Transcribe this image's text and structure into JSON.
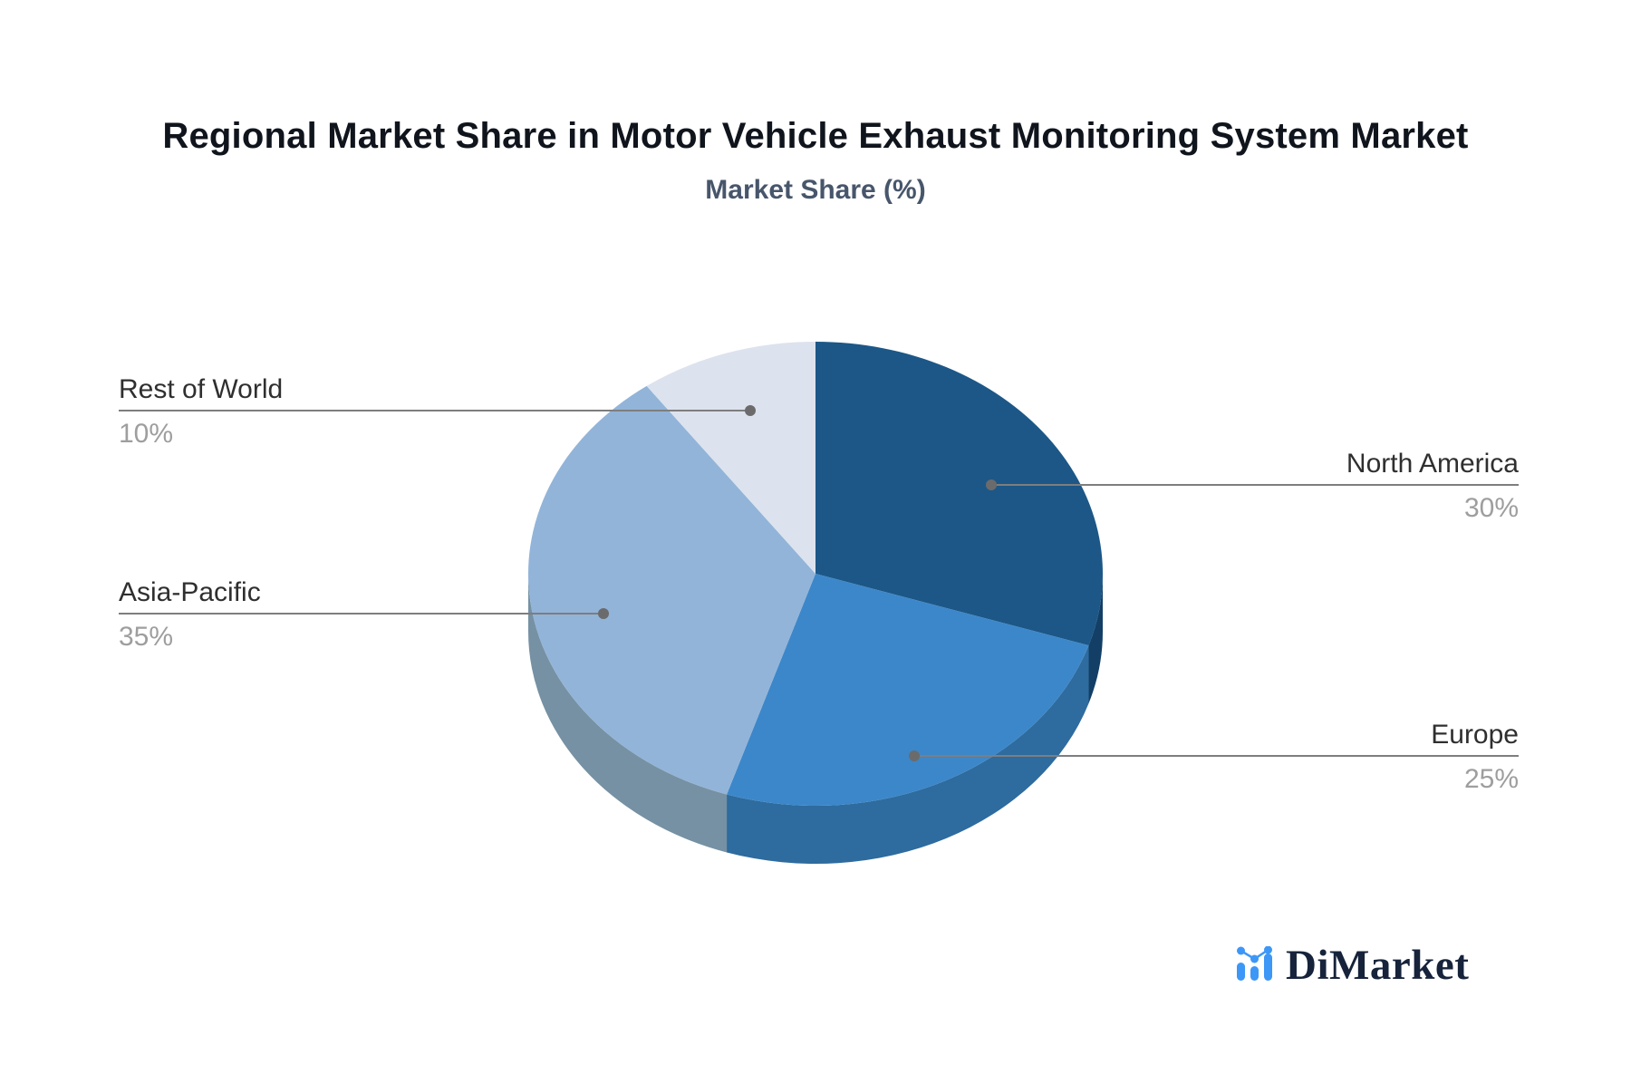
{
  "chart_data": {
    "type": "pie",
    "style": "3d",
    "title": "Regional Market Share in Motor Vehicle Exhaust Monitoring System Market",
    "subtitle": "Market Share (%)",
    "unit": "%",
    "start_angle_deg": 0,
    "direction": "clockwise",
    "legend_position": "callout-labels",
    "grid": false,
    "slices": [
      {
        "label": "North America",
        "value": 30,
        "display": "30%",
        "color": "#1C5787",
        "side_color": "#133F66"
      },
      {
        "label": "Europe",
        "value": 25,
        "display": "25%",
        "color": "#3C87C9",
        "side_color": "#2E6B9E"
      },
      {
        "label": "Asia-Pacific",
        "value": 35,
        "display": "35%",
        "color": "#92B4D9",
        "side_color": "#7691A3"
      },
      {
        "label": "Rest of World",
        "value": 10,
        "display": "10%",
        "color": "#DCE3EE",
        "side_color": "#B9C3D2"
      }
    ],
    "colors": {
      "background": "#FFFFFF",
      "title": "#10151D",
      "subtitle": "#47566B",
      "callout_label": "#2F2F2F",
      "callout_value": "#9E9E9E",
      "leader_line": "#7E7E7E",
      "leader_dot": "#6B6B6B"
    }
  },
  "branding": {
    "logo_text": "DiMarket",
    "logo_icon": "bar-line-chart-icon",
    "logo_icon_color": "#3D97F7",
    "logo_text_color": "#16233B"
  }
}
